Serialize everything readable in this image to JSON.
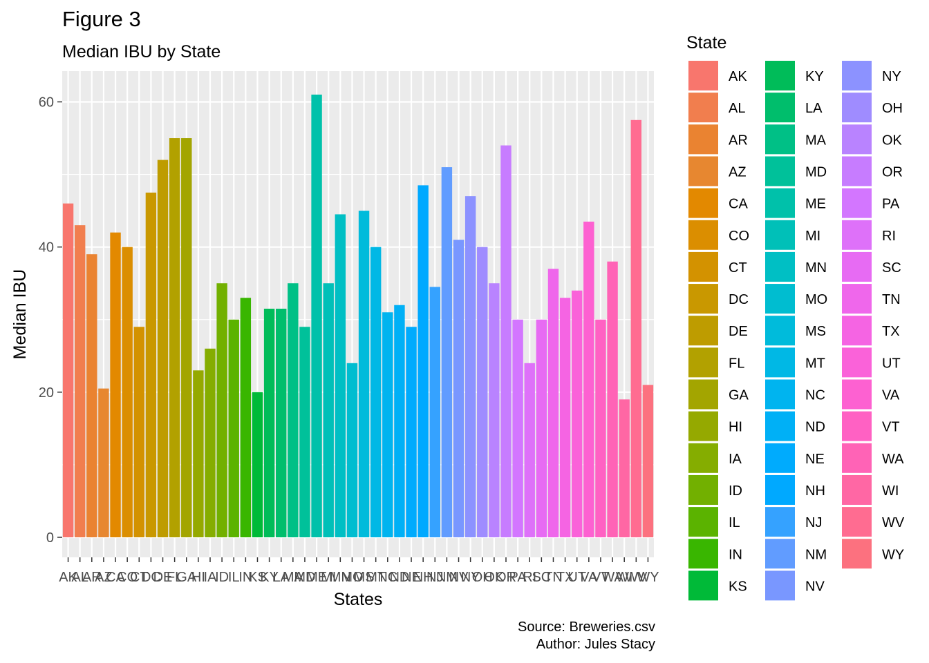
{
  "title": "Figure 3",
  "subtitle": "Median IBU by State",
  "caption": {
    "line1": "Source: Breweries.csv",
    "line2": "Author: Jules Stacy"
  },
  "chart_data": {
    "type": "bar",
    "xlabel": "States",
    "ylabel": "Median IBU",
    "ylim": [
      0,
      62
    ],
    "yticks": [
      0,
      20,
      40,
      60
    ],
    "grid": true,
    "legend": {
      "title": "State",
      "placement": "right",
      "columns": 3
    },
    "categories": [
      "AK",
      "AL",
      "AR",
      "AZ",
      "CA",
      "CO",
      "CT",
      "DC",
      "DE",
      "FL",
      "GA",
      "HI",
      "IA",
      "ID",
      "IL",
      "IN",
      "KS",
      "KY",
      "LA",
      "MA",
      "MD",
      "ME",
      "MI",
      "MN",
      "MO",
      "MS",
      "MT",
      "NC",
      "ND",
      "NE",
      "NH",
      "NJ",
      "NM",
      "NV",
      "NY",
      "OH",
      "OK",
      "OR",
      "PA",
      "RI",
      "SC",
      "TN",
      "TX",
      "UT",
      "VA",
      "VT",
      "WA",
      "WI",
      "WV",
      "WY"
    ],
    "values": [
      46,
      43,
      39,
      20.5,
      42,
      40,
      29,
      47.5,
      52,
      55,
      55,
      23,
      26,
      35,
      30,
      33,
      20,
      31.5,
      31.5,
      35,
      29,
      61,
      35,
      44.5,
      24,
      45,
      40,
      31,
      32,
      29,
      48.5,
      34.5,
      51,
      41,
      47,
      40,
      35,
      54,
      30,
      24,
      30,
      37,
      33,
      34,
      43.5,
      30,
      38,
      19,
      57.5,
      21
    ],
    "colors": [
      "#F8766D",
      "#F17E4E",
      "#EA8331",
      "#E78730",
      "#E38900",
      "#DB8E00",
      "#D39200",
      "#C99800",
      "#BE9C00",
      "#B2A100",
      "#A3A500",
      "#95A900",
      "#85AD00",
      "#72B000",
      "#5BB300",
      "#39B600",
      "#00BA38",
      "#00BC59",
      "#00BE6C",
      "#00C086",
      "#00C19A",
      "#00C1AA",
      "#00C0B8",
      "#00BFC4",
      "#00BDD0",
      "#00BBDB",
      "#00B8E5",
      "#00B4EF",
      "#00B0F6",
      "#00ABFD",
      "#00A9FF",
      "#35A2FF",
      "#619CFF",
      "#7997FF",
      "#8C92FF",
      "#9F8CFF",
      "#B983FF",
      "#C77CFF",
      "#D376FF",
      "#DE71F9",
      "#E76BF3",
      "#EF67EB",
      "#F564E3",
      "#FA62D9",
      "#FD61D1",
      "#FF61C3",
      "#FF63B6",
      "#FF67A4",
      "#FF6C91",
      "#FC717F"
    ]
  }
}
